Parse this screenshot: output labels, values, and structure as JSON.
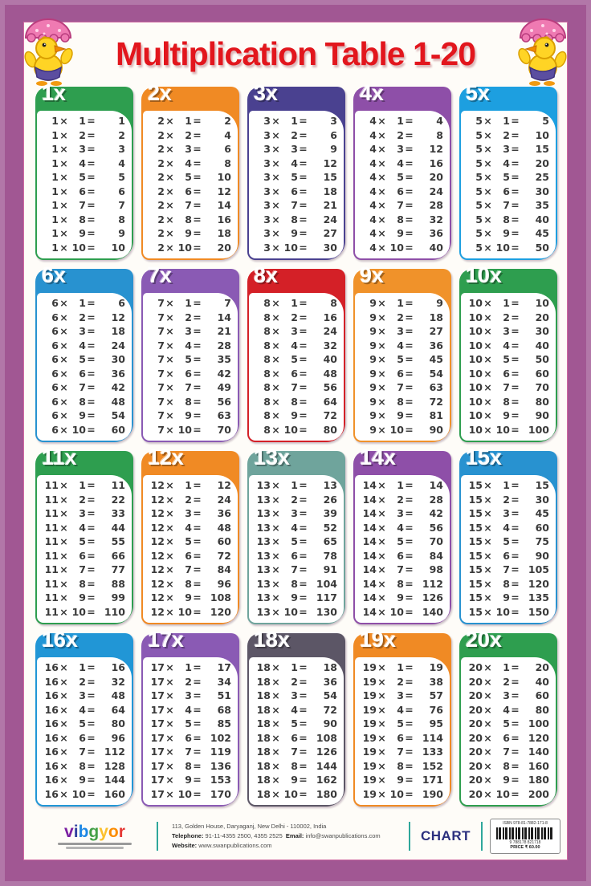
{
  "poster": {
    "title": "Multiplication Table 1-20",
    "title_color": "#e2161d",
    "frame_color": "#a15793",
    "mascot": "duck-with-pink-umbrella"
  },
  "multipliers": [
    1,
    2,
    3,
    4,
    5,
    6,
    7,
    8,
    9,
    10
  ],
  "times_sign": "×",
  "equals_sign": "=",
  "tables": [
    {
      "label": "1x",
      "n": 1,
      "color": "#2e9e4f",
      "products": [
        1,
        2,
        3,
        4,
        5,
        6,
        7,
        8,
        9,
        10
      ]
    },
    {
      "label": "2x",
      "n": 2,
      "color": "#f08a24",
      "products": [
        2,
        4,
        6,
        8,
        10,
        12,
        14,
        16,
        18,
        20
      ]
    },
    {
      "label": "3x",
      "n": 3,
      "color": "#4a4190",
      "products": [
        3,
        6,
        9,
        12,
        15,
        18,
        21,
        24,
        27,
        30
      ]
    },
    {
      "label": "4x",
      "n": 4,
      "color": "#8e4fa8",
      "products": [
        4,
        8,
        12,
        16,
        20,
        24,
        28,
        32,
        36,
        40
      ]
    },
    {
      "label": "5x",
      "n": 5,
      "color": "#1d9fe0",
      "products": [
        5,
        10,
        15,
        20,
        25,
        30,
        35,
        40,
        45,
        50
      ]
    },
    {
      "label": "6x",
      "n": 6,
      "color": "#2892d0",
      "products": [
        6,
        12,
        18,
        24,
        30,
        36,
        42,
        48,
        54,
        60
      ]
    },
    {
      "label": "7x",
      "n": 7,
      "color": "#8a5ab4",
      "products": [
        7,
        14,
        21,
        28,
        35,
        42,
        49,
        56,
        63,
        70
      ]
    },
    {
      "label": "8x",
      "n": 8,
      "color": "#d42027",
      "products": [
        8,
        16,
        24,
        32,
        40,
        48,
        56,
        64,
        72,
        80
      ]
    },
    {
      "label": "9x",
      "n": 9,
      "color": "#f0922a",
      "products": [
        9,
        18,
        27,
        36,
        45,
        54,
        63,
        72,
        81,
        90
      ]
    },
    {
      "label": "10x",
      "n": 10,
      "color": "#2e9e4f",
      "products": [
        10,
        20,
        30,
        40,
        50,
        60,
        70,
        80,
        90,
        100
      ]
    },
    {
      "label": "11x",
      "n": 11,
      "color": "#2e9e4f",
      "products": [
        11,
        22,
        33,
        44,
        55,
        66,
        77,
        88,
        99,
        110
      ]
    },
    {
      "label": "12x",
      "n": 12,
      "color": "#f08a24",
      "products": [
        12,
        24,
        36,
        48,
        60,
        72,
        84,
        96,
        108,
        120
      ]
    },
    {
      "label": "13x",
      "n": 13,
      "color": "#6fa49c",
      "products": [
        13,
        26,
        39,
        52,
        65,
        78,
        91,
        104,
        117,
        130
      ]
    },
    {
      "label": "14x",
      "n": 14,
      "color": "#8e4fa8",
      "products": [
        14,
        28,
        42,
        56,
        70,
        84,
        98,
        112,
        126,
        140
      ]
    },
    {
      "label": "15x",
      "n": 15,
      "color": "#2892d0",
      "products": [
        15,
        30,
        45,
        60,
        75,
        90,
        105,
        120,
        135,
        150
      ]
    },
    {
      "label": "16x",
      "n": 16,
      "color": "#2196d6",
      "products": [
        16,
        32,
        48,
        64,
        80,
        96,
        112,
        128,
        144,
        160
      ]
    },
    {
      "label": "17x",
      "n": 17,
      "color": "#8a5ab4",
      "products": [
        17,
        34,
        51,
        68,
        85,
        102,
        119,
        136,
        153,
        170
      ]
    },
    {
      "label": "18x",
      "n": 18,
      "color": "#5c5666",
      "products": [
        18,
        36,
        54,
        72,
        90,
        108,
        126,
        144,
        162,
        180
      ]
    },
    {
      "label": "19x",
      "n": 19,
      "color": "#f08a24",
      "products": [
        19,
        38,
        57,
        76,
        95,
        114,
        133,
        152,
        171,
        190
      ]
    },
    {
      "label": "20x",
      "n": 20,
      "color": "#2e9e4f",
      "products": [
        20,
        40,
        60,
        80,
        100,
        120,
        140,
        160,
        180,
        200
      ]
    }
  ],
  "footer": {
    "logo": {
      "word": "vibgyor",
      "letter_colors": [
        "#7a1fa2",
        "#303f9f",
        "#1e88e5",
        "#43a047",
        "#fbc02d",
        "#fb8c00",
        "#e53935"
      ]
    },
    "address_line1": "113, Golden House, Daryaganj, New Delhi - 110002, India",
    "telephone_label": "Telephone:",
    "telephone": "91-11-4355 2500, 4355 2525",
    "email_label": "Email:",
    "email": "info@swanpublications.com",
    "website_label": "Website:",
    "website": "www.swanpublications.com",
    "chart_label": "CHART",
    "barcode": {
      "isbn": "ISBN 978-81-7882-171-8",
      "number": "9 788178 821718",
      "price": "PRICE ₹ 60.00"
    }
  }
}
